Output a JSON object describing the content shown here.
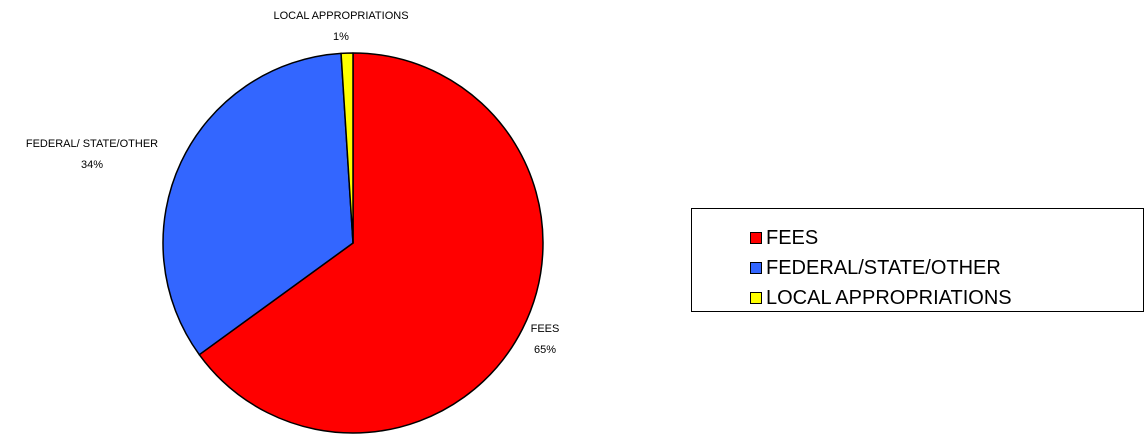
{
  "chart_data": {
    "type": "pie",
    "title": "",
    "legend_position": "right",
    "slices": [
      {
        "name": "FEES",
        "value": 65,
        "label": "65%",
        "color": "#ff0000"
      },
      {
        "name": "FEDERAL/STATE/OTHER",
        "label_name": "FEDERAL/ STATE/OTHER",
        "value": 34,
        "label": "34%",
        "color": "#3366ff"
      },
      {
        "name": "LOCAL APPROPRIATIONS",
        "value": 1,
        "label": "1%",
        "color": "#ffff00"
      }
    ]
  }
}
